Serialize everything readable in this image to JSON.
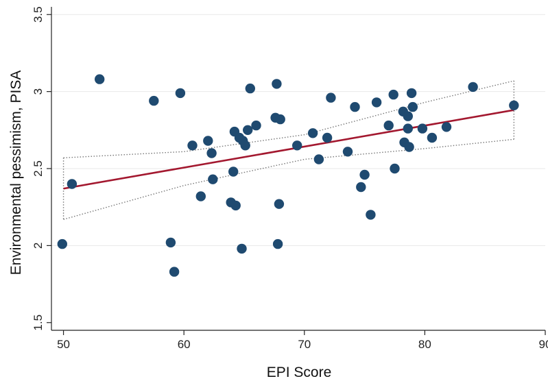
{
  "chart_data": {
    "type": "scatter",
    "xlabel": "EPI Score",
    "ylabel": "Environmental pessimism, PISA",
    "xlim": [
      49,
      90
    ],
    "ylim": [
      1.45,
      3.55
    ],
    "x_ticks": [
      50,
      60,
      70,
      80,
      90
    ],
    "y_ticks": [
      1.5,
      2,
      2.5,
      3,
      3.5
    ],
    "x_tick_labels": [
      "50",
      "60",
      "70",
      "80",
      "90"
    ],
    "y_tick_labels": [
      "1.5",
      "2",
      "2.5",
      "3",
      "3.5"
    ],
    "grid": "horizontal",
    "legend": "none",
    "points": [
      {
        "x": 49.9,
        "y": 2.01
      },
      {
        "x": 50.7,
        "y": 2.4
      },
      {
        "x": 53.0,
        "y": 3.08
      },
      {
        "x": 57.5,
        "y": 2.94
      },
      {
        "x": 58.9,
        "y": 2.02
      },
      {
        "x": 59.2,
        "y": 1.83
      },
      {
        "x": 59.7,
        "y": 2.99
      },
      {
        "x": 60.7,
        "y": 2.65
      },
      {
        "x": 61.4,
        "y": 2.32
      },
      {
        "x": 62.0,
        "y": 2.68
      },
      {
        "x": 62.3,
        "y": 2.6
      },
      {
        "x": 62.4,
        "y": 2.43
      },
      {
        "x": 63.9,
        "y": 2.28
      },
      {
        "x": 64.1,
        "y": 2.48
      },
      {
        "x": 64.2,
        "y": 2.74
      },
      {
        "x": 64.3,
        "y": 2.26
      },
      {
        "x": 64.6,
        "y": 2.7
      },
      {
        "x": 64.8,
        "y": 1.98
      },
      {
        "x": 64.9,
        "y": 2.68
      },
      {
        "x": 65.1,
        "y": 2.65
      },
      {
        "x": 65.3,
        "y": 2.75
      },
      {
        "x": 65.5,
        "y": 3.02
      },
      {
        "x": 66.0,
        "y": 2.78
      },
      {
        "x": 67.6,
        "y": 2.83
      },
      {
        "x": 67.7,
        "y": 3.05
      },
      {
        "x": 67.8,
        "y": 2.01
      },
      {
        "x": 67.9,
        "y": 2.27
      },
      {
        "x": 68.0,
        "y": 2.82
      },
      {
        "x": 69.4,
        "y": 2.65
      },
      {
        "x": 70.7,
        "y": 2.73
      },
      {
        "x": 71.2,
        "y": 2.56
      },
      {
        "x": 71.9,
        "y": 2.7
      },
      {
        "x": 72.2,
        "y": 2.96
      },
      {
        "x": 73.6,
        "y": 2.61
      },
      {
        "x": 74.2,
        "y": 2.9
      },
      {
        "x": 74.7,
        "y": 2.38
      },
      {
        "x": 75.0,
        "y": 2.46
      },
      {
        "x": 75.5,
        "y": 2.2
      },
      {
        "x": 76.0,
        "y": 2.93
      },
      {
        "x": 77.0,
        "y": 2.78
      },
      {
        "x": 77.4,
        "y": 2.98
      },
      {
        "x": 77.5,
        "y": 2.5
      },
      {
        "x": 78.2,
        "y": 2.87
      },
      {
        "x": 78.3,
        "y": 2.67
      },
      {
        "x": 78.6,
        "y": 2.76
      },
      {
        "x": 78.6,
        "y": 2.84
      },
      {
        "x": 78.7,
        "y": 2.64
      },
      {
        "x": 78.9,
        "y": 2.99
      },
      {
        "x": 79.0,
        "y": 2.9
      },
      {
        "x": 79.8,
        "y": 2.76
      },
      {
        "x": 80.6,
        "y": 2.7
      },
      {
        "x": 81.8,
        "y": 2.77
      },
      {
        "x": 84.0,
        "y": 3.03
      },
      {
        "x": 87.4,
        "y": 2.91
      }
    ],
    "fit_line": {
      "x": [
        50.0,
        87.4
      ],
      "y": [
        2.37,
        2.88
      ]
    },
    "ci_upper": {
      "x": [
        50.0,
        60.0,
        70.0,
        80.0,
        87.4
      ],
      "y": [
        2.57,
        2.61,
        2.72,
        2.93,
        3.07
      ]
    },
    "ci_lower": {
      "x": [
        50.0,
        60.0,
        70.0,
        80.0,
        87.4
      ],
      "y": [
        2.17,
        2.39,
        2.56,
        2.63,
        2.69
      ]
    },
    "colors": {
      "points": "#1f4a70",
      "fit_line": "#a3182f",
      "ci": "#777777",
      "grid": "#e8e8e8",
      "axis": "#222222"
    }
  }
}
